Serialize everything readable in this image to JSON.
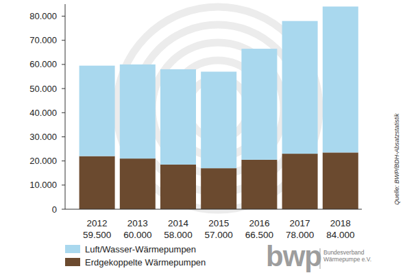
{
  "chart_data": {
    "type": "bar",
    "stacked": true,
    "categories": [
      "2012",
      "2013",
      "2014",
      "2015",
      "2016",
      "2017",
      "2018"
    ],
    "total_labels": [
      "59.500",
      "60.000",
      "58.000",
      "57.000",
      "66.500",
      "78.000",
      "84.000"
    ],
    "series": [
      {
        "name": "Luft/Wasser-Wärmepumpen",
        "color": "#a9d8ee",
        "values": [
          37500,
          39000,
          39500,
          40000,
          46000,
          55000,
          60500
        ]
      },
      {
        "name": "Erdgekoppelte Wärmepumpen",
        "color": "#6b4a2f",
        "values": [
          22000,
          21000,
          18500,
          17000,
          20500,
          23000,
          23500
        ]
      }
    ],
    "ylim": [
      0,
      85000
    ],
    "yticks": [
      0,
      {
        "value": 10000,
        "label": "10.000"
      },
      {
        "value": 20000,
        "label": "20.000"
      },
      {
        "value": 30000,
        "label": "30.000"
      },
      {
        "value": 40000,
        "label": "40.000"
      },
      {
        "value": 50000,
        "label": "50.000"
      },
      {
        "value": 60000,
        "label": "60.000"
      },
      {
        "value": 70000,
        "label": "70.000"
      },
      {
        "value": 80000,
        "label": "80.000"
      }
    ],
    "grid": false,
    "legend": "bottom-left",
    "source": "Quelle: BWP/BDH-Absatzstatistik",
    "logo": {
      "text": "bwp",
      "lines": [
        "Bundesverband",
        "Wärmepumpe e.V."
      ]
    }
  }
}
